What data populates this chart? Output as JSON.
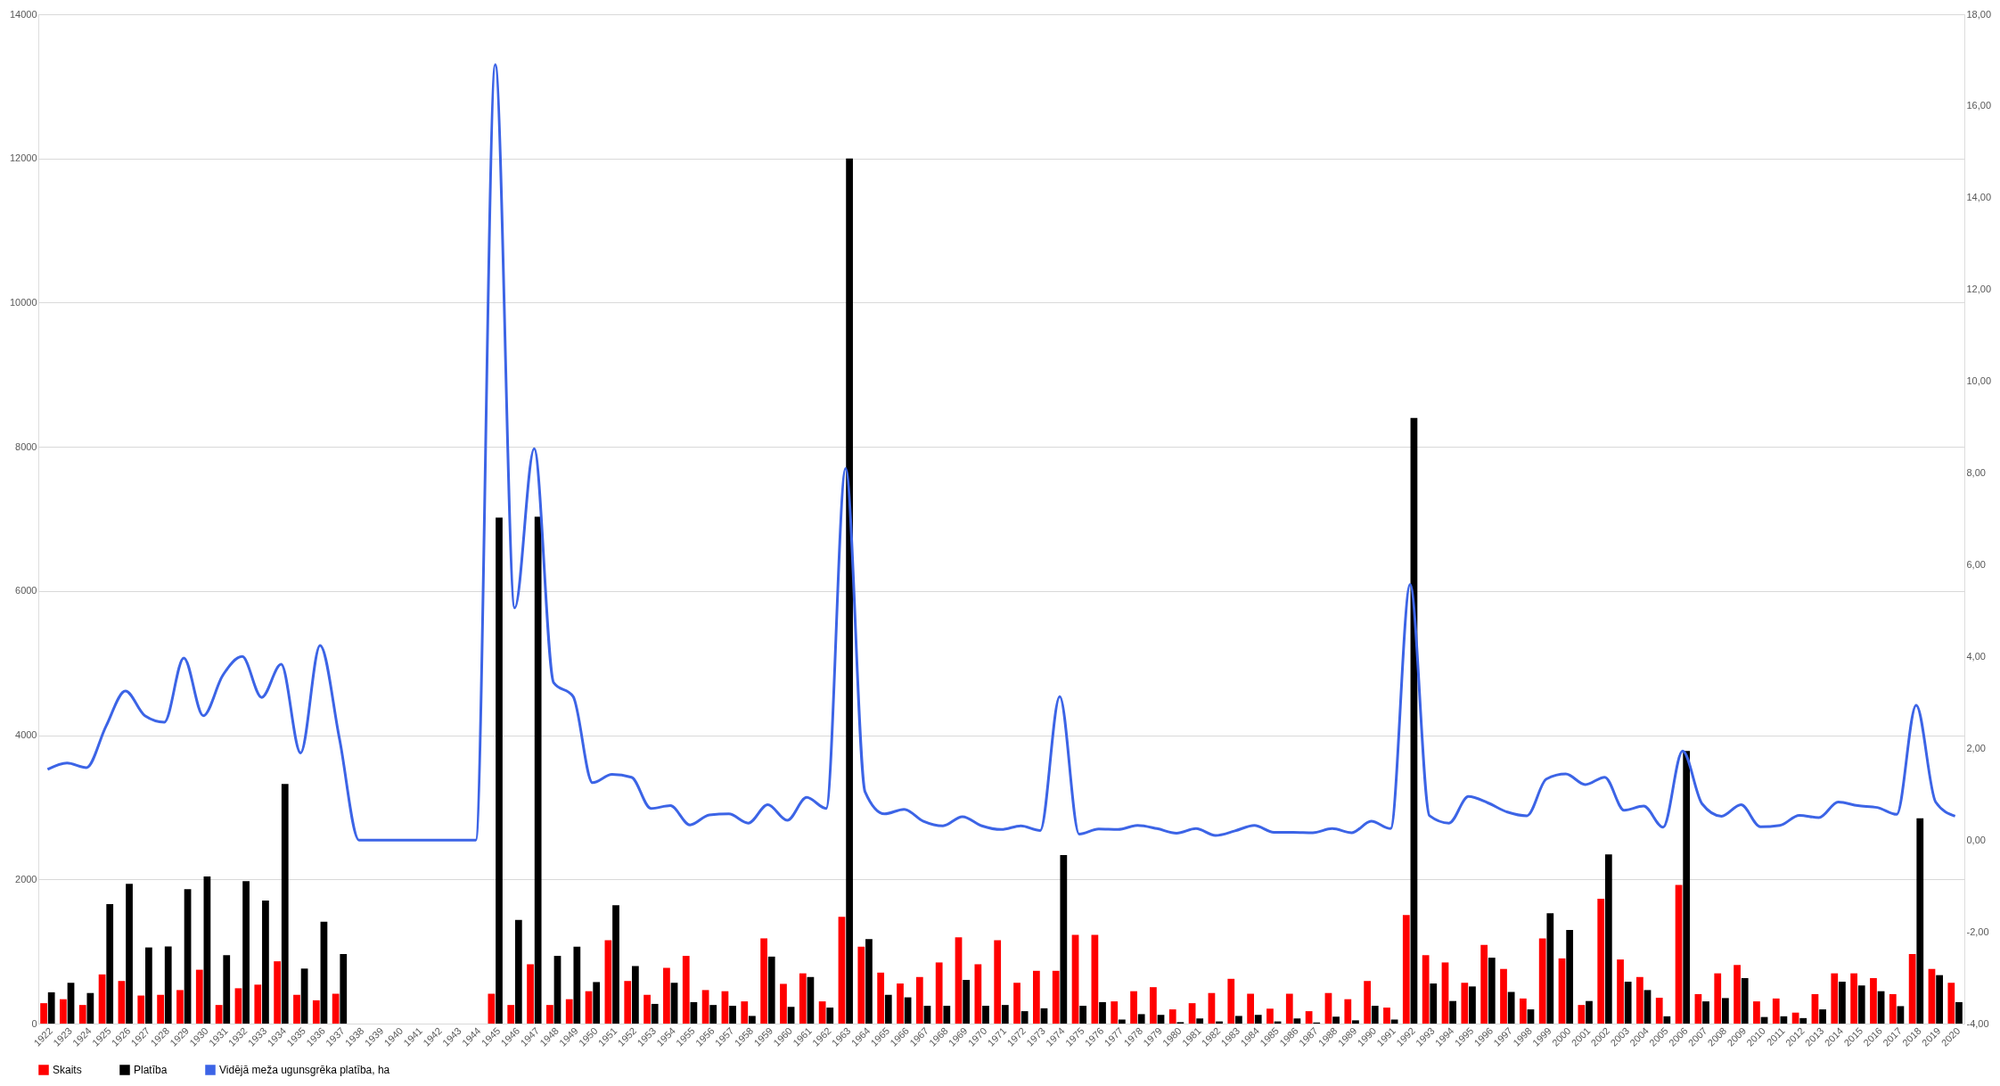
{
  "chart_data": {
    "type": "bar",
    "categories": [
      "1922",
      "1923",
      "1924",
      "1925",
      "1926",
      "1927",
      "1928",
      "1929",
      "1930",
      "1931",
      "1932",
      "1933",
      "1934",
      "1935",
      "1936",
      "1937",
      "1938",
      "1939",
      "1940",
      "1941",
      "1942",
      "1943",
      "1944",
      "1945",
      "1946",
      "1947",
      "1948",
      "1949",
      "1950",
      "1951",
      "1952",
      "1953",
      "1954",
      "1955",
      "1956",
      "1957",
      "1958",
      "1959",
      "1960",
      "1961",
      "1962",
      "1963",
      "1964",
      "1965",
      "1966",
      "1967",
      "1968",
      "1969",
      "1970",
      "1971",
      "1972",
      "1973",
      "1974",
      "1975",
      "1976",
      "1977",
      "1978",
      "1979",
      "1980",
      "1981",
      "1982",
      "1983",
      "1984",
      "1985",
      "1986",
      "1987",
      "1988",
      "1989",
      "1990",
      "1991",
      "1992",
      "1993",
      "1994",
      "1995",
      "1996",
      "1997",
      "1998",
      "1999",
      "2000",
      "2001",
      "2002",
      "2003",
      "2004",
      "2005",
      "2006",
      "2007",
      "2008",
      "2009",
      "2010",
      "2011",
      "2012",
      "2013",
      "2014",
      "2015",
      "2016",
      "2017",
      "2018",
      "2019",
      "2020"
    ],
    "series": [
      {
        "name": "Skaits",
        "color": "#ff0000",
        "values": [
          283,
          338,
          258,
          682,
          591,
          389,
          399,
          465,
          747,
          258,
          490,
          540,
          864,
          399,
          323,
          414,
          null,
          null,
          null,
          null,
          null,
          null,
          null,
          414,
          258,
          823,
          258,
          338,
          449,
          1157,
          591,
          399,
          773,
          939,
          465,
          449,
          308,
          1182,
          551,
          697,
          308,
          1480,
          1066,
          707,
          556,
          646,
          848,
          1197,
          823,
          1157,
          566,
          732,
          732,
          1232,
          1232,
          308,
          449,
          505,
          197,
          283,
          424,
          621,
          414,
          207,
          414,
          172,
          424,
          338,
          591,
          222,
          1505,
          949,
          848,
          566,
          1091,
          758,
          348,
          1182,
          904,
          258,
          1732,
          889,
          646,
          359,
          1924,
          409,
          697,
          813,
          308,
          348,
          152,
          409,
          697,
          697,
          631,
          409,
          965,
          758,
          566
        ]
      },
      {
        "name": "Platība",
        "color": "#000000",
        "values": [
          434,
          566,
          424,
          1657,
          1939,
          1056,
          1071,
          1864,
          2040,
          949,
          1975,
          1707,
          3323,
          763,
          1414,
          965,
          null,
          null,
          null,
          null,
          null,
          null,
          null,
          7020,
          1439,
          7030,
          939,
          1066,
          576,
          1641,
          798,
          273,
          566,
          298,
          258,
          247,
          106,
          929,
          232,
          646,
          222,
          12000,
          1172,
          399,
          364,
          247,
          247,
          606,
          247,
          258,
          172,
          212,
          2338,
          247,
          298,
          56,
          131,
          121,
          20,
          71,
          30,
          106,
          121,
          30,
          71,
          15,
          96,
          45,
          247,
          56,
          8400,
          556,
          313,
          515,
          914,
          439,
          197,
          1530,
          1298,
          313,
          2348,
          581,
          465,
          101,
          3780,
          308,
          354,
          631,
          91,
          101,
          76,
          197,
          581,
          530,
          449,
          242,
          2848,
          672,
          298
        ]
      },
      {
        "name": "Vidējā meža ugunsgrēka platība, ha",
        "type": "line",
        "axis": "y2",
        "color": "#3c64e6",
        "values": [
          1.54,
          1.68,
          1.58,
          2.48,
          3.25,
          2.71,
          2.57,
          3.97,
          2.71,
          3.59,
          4.0,
          3.11,
          3.83,
          1.9,
          4.24,
          2.2,
          0,
          0,
          0,
          0,
          0,
          0,
          0,
          16.9,
          5.06,
          8.53,
          3.43,
          3.13,
          1.25,
          1.43,
          1.37,
          0.69,
          0.75,
          0.33,
          0.55,
          0.57,
          0.37,
          0.77,
          0.43,
          0.93,
          0.69,
          8.1,
          1.05,
          0.57,
          0.67,
          0.41,
          0.31,
          0.51,
          0.31,
          0.23,
          0.31,
          0.21,
          3.13,
          0.13,
          0.24,
          0.23,
          0.32,
          0.25,
          0.15,
          0.25,
          0.1,
          0.2,
          0.32,
          0.17,
          0.17,
          0.16,
          0.25,
          0.16,
          0.41,
          0.25,
          5.57,
          0.53,
          0.37,
          0.95,
          0.81,
          0.61,
          0.53,
          1.33,
          1.44,
          1.21,
          1.37,
          0.65,
          0.74,
          0.28,
          1.94,
          0.79,
          0.52,
          0.77,
          0.29,
          0.32,
          0.54,
          0.49,
          0.83,
          0.75,
          0.71,
          0.56,
          2.94,
          0.83,
          0.52
        ]
      }
    ],
    "ylim": [
      0,
      14000
    ],
    "yticks": [
      0,
      2000,
      4000,
      6000,
      8000,
      10000,
      12000,
      14000
    ],
    "y2lim": [
      -4,
      18
    ],
    "y2ticks": [
      {
        "value": -4,
        "label": "-4,00"
      },
      {
        "value": -2,
        "label": "-2,00"
      },
      {
        "value": 0,
        "label": "0,00"
      },
      {
        "value": 2,
        "label": "2,00"
      },
      {
        "value": 4,
        "label": "4,00"
      },
      {
        "value": 6,
        "label": "6,00"
      },
      {
        "value": 8,
        "label": "8,00"
      },
      {
        "value": 10,
        "label": "10,00"
      },
      {
        "value": 12,
        "label": "12,00"
      },
      {
        "value": 14,
        "label": "14,00"
      },
      {
        "value": 16,
        "label": "16,00"
      },
      {
        "value": 18,
        "label": "18,00"
      }
    ],
    "grid": "y",
    "legend": "bottom"
  }
}
